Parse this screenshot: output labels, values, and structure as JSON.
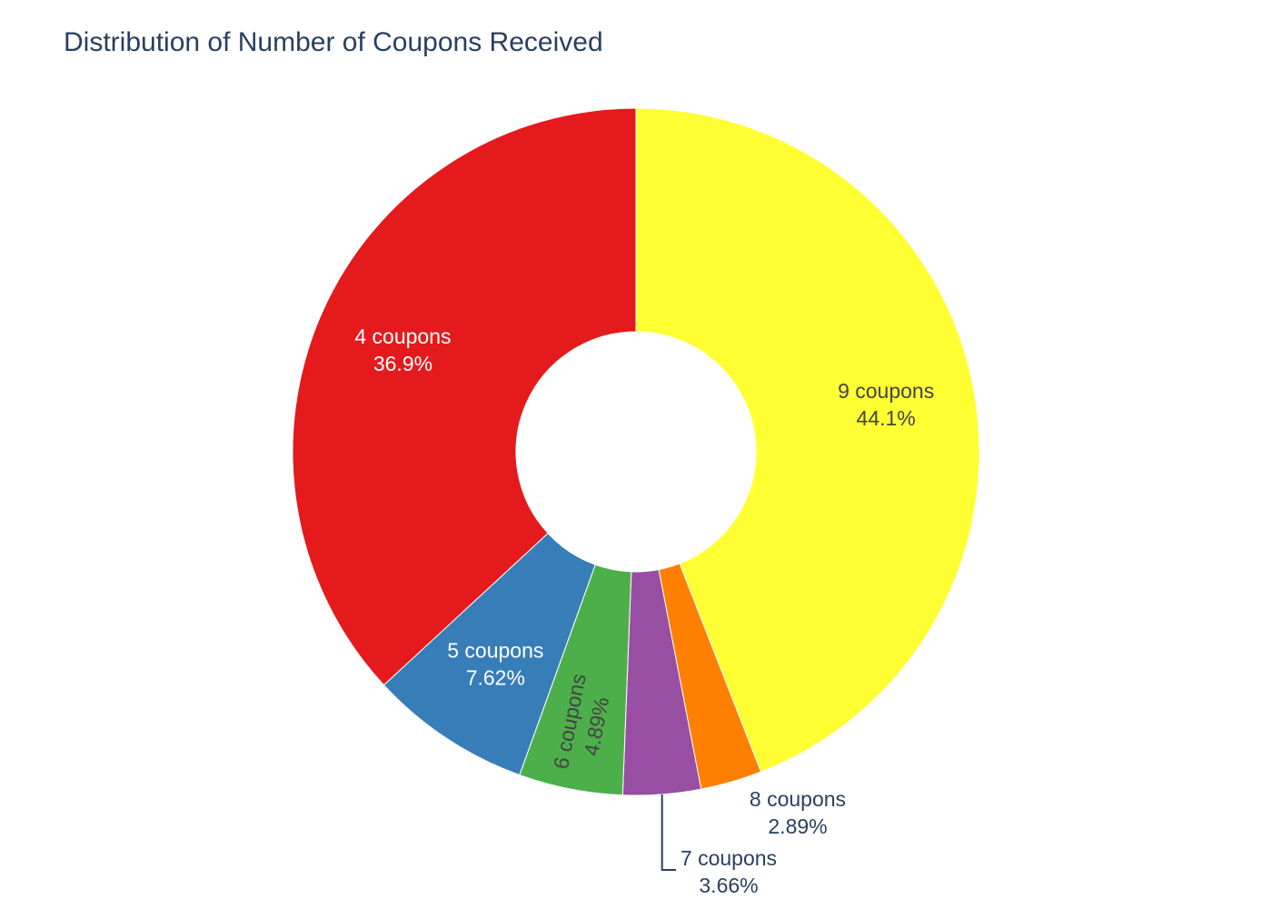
{
  "chart_data": {
    "type": "pie",
    "title": "Distribution of Number of Coupons Received",
    "hole": true,
    "direction": "clockwise",
    "slices": [
      {
        "label": "9 coupons",
        "value": 44.1,
        "percent_label": "44.1%",
        "color": "#ffff33",
        "text_color": "#444444",
        "label_position": "inside"
      },
      {
        "label": "8 coupons",
        "value": 2.89,
        "percent_label": "2.89%",
        "color": "#ff7f00",
        "text_color": "#2a3f5f",
        "label_position": "outside"
      },
      {
        "label": "7 coupons",
        "value": 3.66,
        "percent_label": "3.66%",
        "color": "#984ea3",
        "text_color": "#2a3f5f",
        "label_position": "outside"
      },
      {
        "label": "6 coupons",
        "value": 4.89,
        "percent_label": "4.89%",
        "color": "#4daf4a",
        "text_color": "#444444",
        "label_position": "inside-radial"
      },
      {
        "label": "5 coupons",
        "value": 7.62,
        "percent_label": "7.62%",
        "color": "#377eb8",
        "text_color": "#ffffff",
        "label_position": "inside"
      },
      {
        "label": "4 coupons",
        "value": 36.9,
        "percent_label": "36.9%",
        "color": "#e41a1c",
        "text_color": "#ffffff",
        "label_position": "inside"
      }
    ]
  }
}
